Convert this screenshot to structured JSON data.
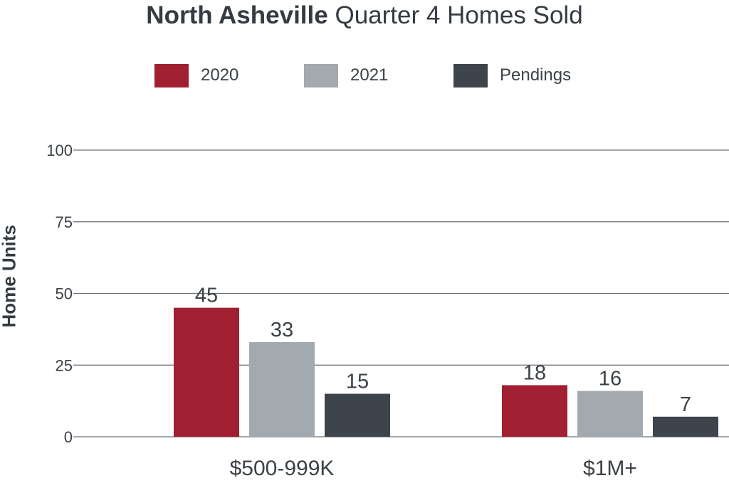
{
  "chart_data": {
    "type": "bar",
    "title_bold": "North Asheville",
    "title_rest": "Quarter 4 Homes Sold",
    "ylabel": "Home Units",
    "xlabel": "",
    "ylim": [
      0,
      100
    ],
    "yticks": [
      0,
      25,
      50,
      75,
      100
    ],
    "categories": [
      "$500-999K",
      "$1M+"
    ],
    "series": [
      {
        "name": "2020",
        "values": [
          45,
          18
        ],
        "color": "#a01f30"
      },
      {
        "name": "2021",
        "values": [
          33,
          16
        ],
        "color": "#a2aab0"
      },
      {
        "name": "Pendings",
        "values": [
          15,
          7
        ],
        "color": "#3d444b"
      }
    ],
    "grid": true,
    "legend": "top-center"
  }
}
